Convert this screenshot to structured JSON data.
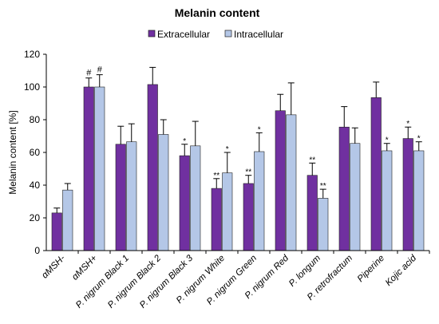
{
  "chart_data": {
    "type": "bar",
    "title": "Melanin content",
    "xlabel": "",
    "ylabel": "Melanin content [%]",
    "ylim": [
      0,
      120
    ],
    "yticks": [
      0,
      20,
      40,
      60,
      80,
      100,
      120
    ],
    "legend_position": "top-center",
    "grid": false,
    "categories": [
      "αMSH-",
      "αMSH+",
      "P. nigrum Black 1",
      "P. nigrum Black 2",
      "P. nigrum Black 3",
      "P. nigrum White",
      "P. nigrum Green",
      "P. nigrum Red",
      "P. longum",
      "P. retrofractum",
      "Piperine",
      "Kojic acid"
    ],
    "series": [
      {
        "name": "Extracellular",
        "color": "#7030a0",
        "values": [
          23,
          100,
          65,
          101.5,
          58,
          38,
          41,
          85.5,
          46,
          75.5,
          93.5,
          68.5
        ],
        "errors": [
          3,
          5.5,
          11,
          10.5,
          7,
          6,
          5,
          10,
          7.5,
          12.5,
          9.5,
          7
        ],
        "annotations": [
          "",
          "#",
          "",
          "",
          "*",
          "**",
          "**",
          "",
          "**",
          "",
          "",
          "*"
        ]
      },
      {
        "name": "Intracellular",
        "color": "#b4c7e7",
        "values": [
          37,
          100,
          66.5,
          71,
          64,
          47.5,
          60.5,
          83,
          32,
          65.5,
          61,
          61
        ],
        "errors": [
          4,
          7.5,
          11,
          9,
          15,
          12.5,
          11.5,
          19.5,
          5.5,
          9.5,
          4.5,
          5.5
        ],
        "annotations": [
          "",
          "#",
          "",
          "",
          "",
          "*",
          "*",
          "",
          "**",
          "",
          "*",
          "*"
        ]
      }
    ]
  }
}
